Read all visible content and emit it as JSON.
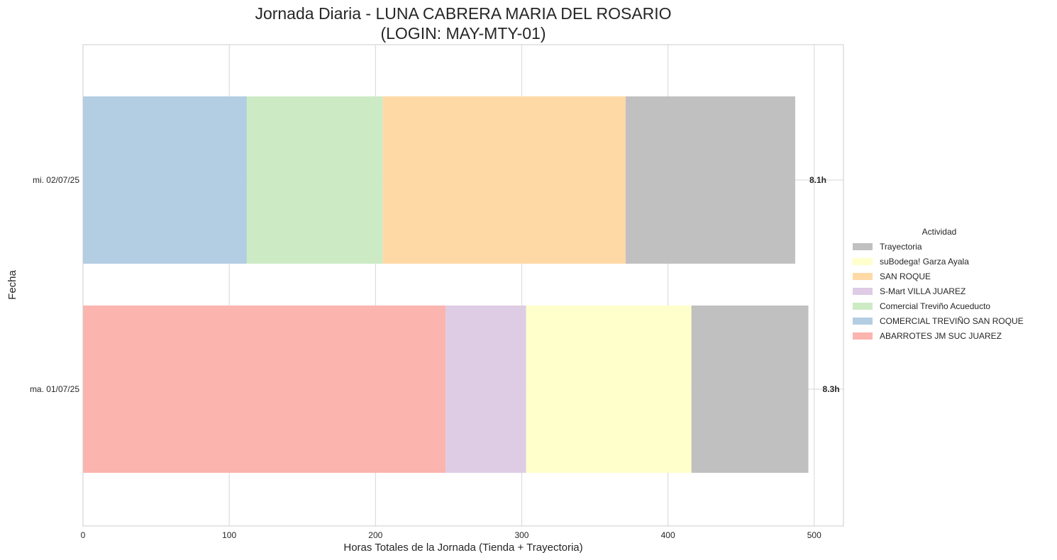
{
  "chart_data": {
    "type": "bar",
    "orientation": "horizontal",
    "stacked": true,
    "title_line1": "Jornada Diaria - LUNA CABRERA MARIA DEL ROSARIO",
    "title_line2": "(LOGIN: MAY-MTY-01)",
    "xlabel": "Horas Totales de la Jornada (Tienda + Trayectoria)",
    "ylabel": "Fecha",
    "xlim": [
      0,
      520
    ],
    "xticks": [
      0,
      100,
      200,
      300,
      400,
      500
    ],
    "grid": true,
    "categories": [
      "ma. 01/07/25",
      "mi. 02/07/25"
    ],
    "totals": [
      "8.3h",
      "8.1h"
    ],
    "series": [
      {
        "name": "ABARROTES JM SUC JUAREZ",
        "color": "#fbb4ae",
        "values": [
          248,
          0
        ]
      },
      {
        "name": "COMERCIAL TREVIÑO SAN ROQUE",
        "color": "#b3cde3",
        "values": [
          0,
          112
        ]
      },
      {
        "name": "Comercial Treviño Acueducto",
        "color": "#ccebc5",
        "values": [
          0,
          93
        ]
      },
      {
        "name": "S-Mart VILLA JUAREZ",
        "color": "#decbe4",
        "values": [
          55,
          0
        ]
      },
      {
        "name": "SAN ROQUE",
        "color": "#fed9a6",
        "values": [
          0,
          166
        ]
      },
      {
        "name": "suBodega! Garza Ayala",
        "color": "#ffffcc",
        "values": [
          113,
          0
        ]
      },
      {
        "name": "Trayectoria",
        "color": "#c0c0c0",
        "values": [
          80,
          116
        ]
      }
    ],
    "stack_order": [
      [
        "ABARROTES JM SUC JUAREZ",
        "S-Mart VILLA JUAREZ",
        "suBodega! Garza Ayala",
        "Trayectoria"
      ],
      [
        "COMERCIAL TREVIÑO SAN ROQUE",
        "Comercial Treviño Acueducto",
        "SAN ROQUE",
        "Trayectoria"
      ]
    ],
    "legend": {
      "title": "Actividad",
      "placement": "right",
      "entries": [
        "Trayectoria",
        "suBodega! Garza Ayala",
        "SAN ROQUE",
        "S-Mart VILLA JUAREZ",
        "Comercial Treviño Acueducto",
        "COMERCIAL TREVIÑO SAN ROQUE",
        "ABARROTES JM SUC JUAREZ"
      ]
    }
  }
}
